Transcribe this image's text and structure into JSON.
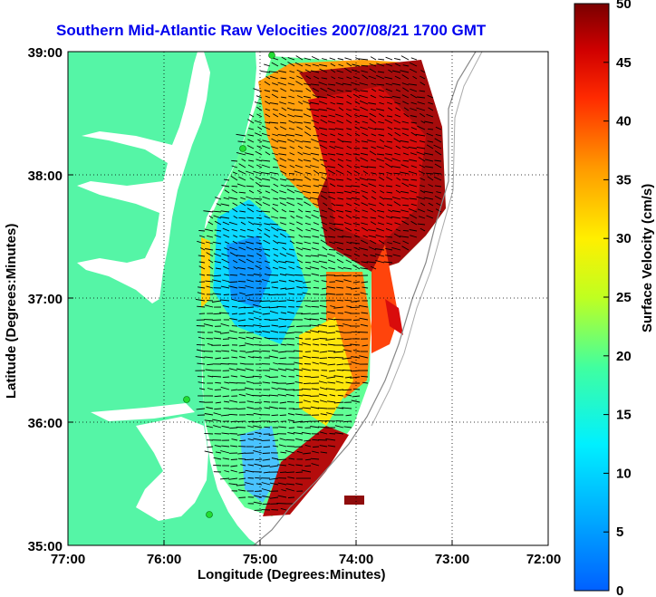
{
  "title": "Southern Mid-Atlantic Raw Velocities 2007/08/21 1700 GMT",
  "xlabel": "Longitude (Degrees:Minutes)",
  "ylabel": "Latitude (Degrees:Minutes)",
  "colorbar_label": "Surface Velocity (cm/s)",
  "x_ticks": [
    "77:00",
    "76:00",
    "75:00",
    "74:00",
    "73:00",
    "72:00"
  ],
  "y_ticks": [
    "39:00",
    "38:00",
    "37:00",
    "36:00",
    "35:00"
  ],
  "colorbar_ticks": [
    "50",
    "45",
    "40",
    "35",
    "30",
    "25",
    "20",
    "15",
    "10",
    "5",
    "0"
  ],
  "colors": {
    "land": "#55f5a6",
    "water": "#ffffff",
    "coast": "#000000",
    "title": "#0000ee",
    "station": "#22dd33"
  },
  "chart_data": {
    "type": "map",
    "xlim": [
      -77,
      -72
    ],
    "ylim": [
      35,
      39
    ],
    "grid": true,
    "colorbar_range": [
      0,
      50
    ],
    "colormap": "jet"
  }
}
